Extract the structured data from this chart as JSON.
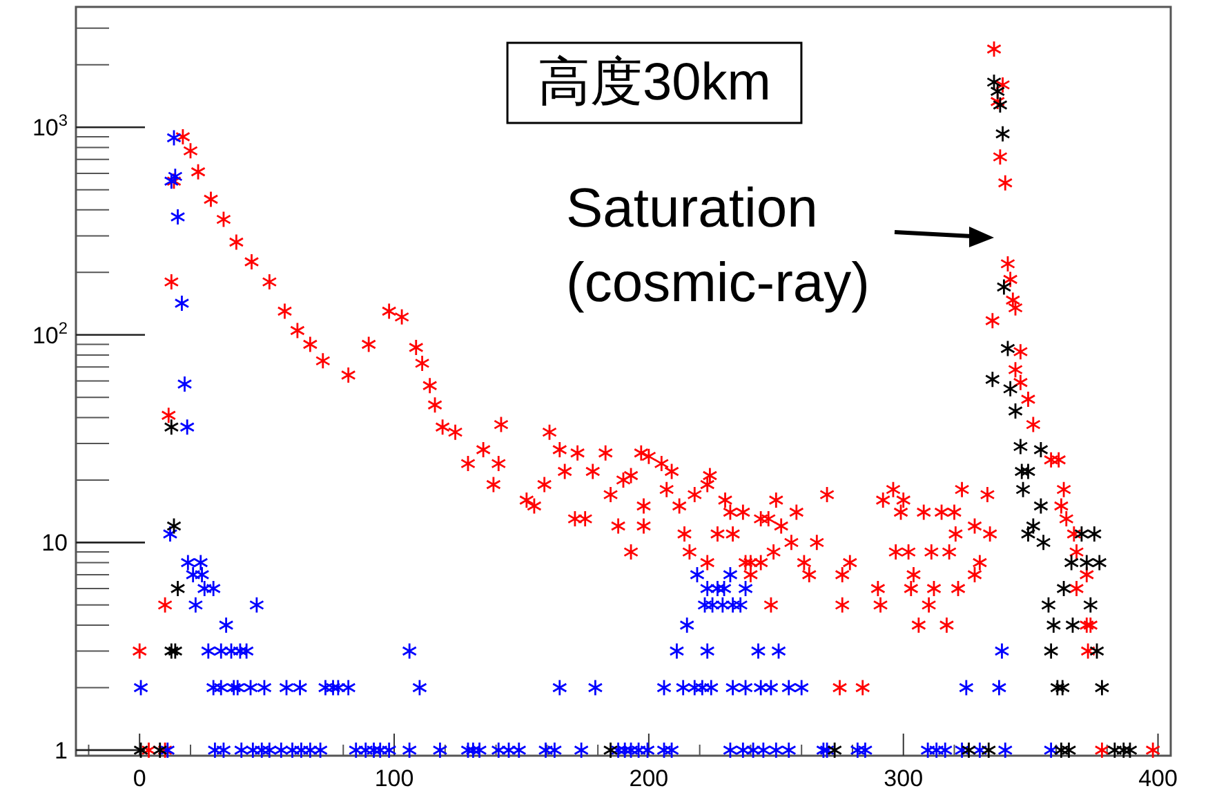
{
  "chart_data": {
    "type": "scatter",
    "log": "y",
    "grid": false,
    "marker": "cross",
    "xlim": [
      -25,
      405
    ],
    "xticks": [
      0,
      100,
      200,
      300,
      400
    ],
    "ylim": [
      0.94,
      3800
    ],
    "yticks": [
      1,
      10,
      {
        "value": 100,
        "label": "10$^{2}$"
      },
      {
        "value": 1000,
        "label": "10$^{3}$"
      }
    ],
    "annotations": [
      "高度30km",
      "Saturation\n(cosmic-ray)"
    ],
    "series": [
      {
        "color": "#ff0000",
        "x": [
          0,
          3.6,
          10,
          10,
          11.4,
          12.5,
          13.5,
          17,
          20,
          23,
          28,
          33,
          38,
          44,
          51,
          57,
          62,
          67,
          72,
          82,
          90,
          98,
          103,
          108.6,
          111,
          114,
          116,
          119,
          124,
          129,
          135,
          139,
          141,
          142,
          152,
          155,
          159,
          161,
          165,
          167,
          171,
          172,
          175,
          178,
          183,
          185,
          188,
          190,
          193,
          193,
          197,
          198,
          198,
          200,
          205,
          207,
          209,
          212,
          214,
          216,
          218,
          223,
          223,
          224,
          227,
          230,
          232,
          233,
          237,
          238,
          240,
          240,
          244,
          244,
          247,
          248,
          249,
          250,
          252,
          256,
          258,
          261,
          263,
          266,
          270,
          275,
          276,
          276,
          279,
          284,
          290,
          291,
          292,
          296,
          297,
          299,
          300,
          302,
          303,
          304,
          306,
          308,
          310,
          311,
          312,
          315,
          317,
          318,
          320,
          320.5,
          321.5,
          323,
          328,
          328,
          330,
          333,
          334,
          335,
          335.6,
          337,
          338,
          339,
          340,
          341,
          342,
          343,
          344,
          344,
          346,
          346,
          349,
          351,
          358,
          361,
          362,
          363,
          364,
          367,
          368,
          368,
          372,
          372,
          372.5,
          373.5,
          378,
          398
        ],
        "values": [
          3,
          1,
          1,
          5,
          41,
          180,
          550,
          900,
          770,
          610,
          450,
          360,
          280,
          225,
          180,
          130,
          105,
          90,
          75,
          64,
          90,
          130,
          122,
          87,
          73,
          57,
          46,
          36,
          34,
          24,
          28,
          19,
          24,
          37,
          16,
          15,
          19,
          34,
          28,
          22,
          13,
          27,
          13,
          22,
          27,
          17,
          12,
          20,
          21,
          9,
          27,
          12,
          15,
          26,
          24,
          18,
          22,
          15,
          11,
          9,
          17,
          19,
          8,
          21,
          11,
          16,
          14,
          11,
          14,
          8,
          8,
          7,
          13,
          8,
          13,
          5,
          9,
          16,
          12,
          10,
          14,
          8,
          7,
          10,
          17,
          2,
          5,
          7,
          8,
          2,
          6,
          5,
          16,
          18,
          9,
          14,
          16,
          9,
          6,
          7,
          4,
          14,
          5,
          9,
          6,
          14,
          4,
          9,
          14,
          11,
          6,
          18,
          12,
          7,
          8,
          17,
          11,
          117,
          2380,
          1330,
          720,
          1600,
          540,
          220,
          185,
          147,
          135,
          68,
          83,
          59,
          49,
          37,
          25,
          25,
          15,
          18,
          13,
          11,
          9,
          6,
          7,
          4,
          3,
          4,
          1,
          1
        ]
      },
      {
        "color": "#0000ff",
        "x": [
          0.5,
          11,
          12,
          12.5,
          13.5,
          14,
          15,
          16.6,
          17.7,
          18.7,
          19,
          21,
          22,
          24,
          24.5,
          25.5,
          27,
          29,
          29,
          29.6,
          32,
          32,
          33,
          34,
          36,
          37,
          38.5,
          39.5,
          40,
          42,
          43.6,
          44.5,
          46,
          48,
          49,
          51,
          55.6,
          57.7,
          60,
          63,
          63.5,
          67,
          71,
          73,
          76,
          78,
          82,
          85,
          88.8,
          92,
          94.5,
          98,
          106,
          106,
          110,
          118,
          129,
          131,
          133.5,
          141,
          145,
          149,
          159.5,
          163,
          165,
          173.5,
          179,
          188,
          190.6,
          193,
          196,
          199.5,
          206,
          206,
          209,
          211,
          213.5,
          215,
          218,
          219,
          221,
          222,
          223,
          223,
          224.5,
          225,
          227,
          229,
          229.6,
          232,
          232,
          233,
          233,
          236,
          237,
          238,
          238,
          241,
          243,
          244,
          245,
          248,
          250,
          251,
          255,
          255,
          260,
          268.6,
          270,
          282,
          285,
          309.6,
          313,
          316.4,
          323,
          324.7,
          330,
          337.6,
          338.7,
          340,
          358
        ],
        "values": [
          2,
          1,
          11,
          550,
          890,
          580,
          370,
          142,
          58,
          36,
          8,
          7,
          5,
          8,
          7,
          6,
          3,
          2,
          6,
          1,
          3,
          2,
          1,
          4,
          3,
          2,
          2,
          3,
          1,
          3,
          2,
          1,
          5,
          1,
          2,
          1,
          1,
          2,
          1,
          2,
          1,
          1,
          1,
          2,
          2,
          2,
          2,
          1,
          1,
          1,
          1,
          1,
          3,
          1,
          2,
          1,
          1,
          1,
          1,
          1,
          1,
          1,
          1,
          1,
          2,
          1,
          2,
          1,
          1,
          1,
          1,
          1,
          1,
          2,
          1,
          3,
          2,
          4,
          2,
          7,
          2,
          5,
          6,
          3,
          2,
          5,
          6,
          5,
          6,
          7,
          1,
          2,
          5,
          5,
          1,
          2,
          6,
          1,
          3,
          2,
          1,
          2,
          1,
          3,
          2,
          1,
          2,
          1,
          1,
          1,
          1,
          1,
          1,
          1,
          1,
          2,
          1,
          2,
          3,
          1,
          1
        ]
      },
      {
        "color": "#000000",
        "x": [
          0.5,
          8,
          12.5,
          14,
          12.5,
          13.5,
          15,
          185,
          273,
          325.7,
          333.5,
          335,
          335.6,
          337,
          338,
          339,
          339.5,
          341,
          342,
          344,
          346,
          346.5,
          347,
          349,
          349,
          351,
          354,
          354,
          355,
          357,
          358,
          359,
          360.5,
          362,
          362.5,
          363,
          365,
          366,
          366.5,
          370,
          372,
          373.5,
          375,
          376,
          377,
          378,
          383,
          386.5,
          389
        ],
        "values": [
          1,
          1,
          3,
          3,
          36,
          12,
          6,
          1,
          1,
          1,
          1,
          61,
          1650,
          1490,
          1280,
          930,
          170,
          86,
          55,
          43,
          29,
          22,
          18,
          22,
          11,
          12,
          28,
          15,
          10,
          5,
          3,
          4,
          2,
          1,
          2,
          6,
          1,
          8,
          4,
          11,
          8,
          5,
          11,
          3,
          8,
          2,
          1,
          1,
          1
        ]
      }
    ]
  }
}
